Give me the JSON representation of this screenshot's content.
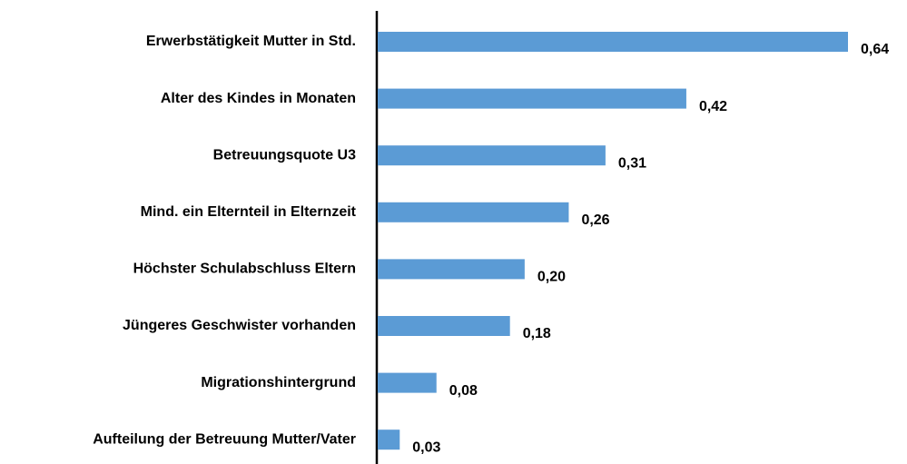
{
  "chart_data": {
    "type": "bar",
    "orientation": "horizontal",
    "categories": [
      "Erwerbstätigkeit Mutter in Std.",
      "Alter des Kindes in Monaten",
      "Betreuungsquote U3",
      "Mind. ein Elternteil in Elternzeit",
      "Höchster Schulabschluss Eltern",
      "Jüngeres Geschwister vorhanden",
      "Migrationshintergrund",
      "Aufteilung der Betreuung Mutter/Vater"
    ],
    "values": [
      0.64,
      0.42,
      0.31,
      0.26,
      0.2,
      0.18,
      0.08,
      0.03
    ],
    "value_labels": [
      "0,64",
      "0,42",
      "0,31",
      "0,26",
      "0,20",
      "0,18",
      "0,08",
      "0,03"
    ],
    "color": "#5b9bd5"
  }
}
